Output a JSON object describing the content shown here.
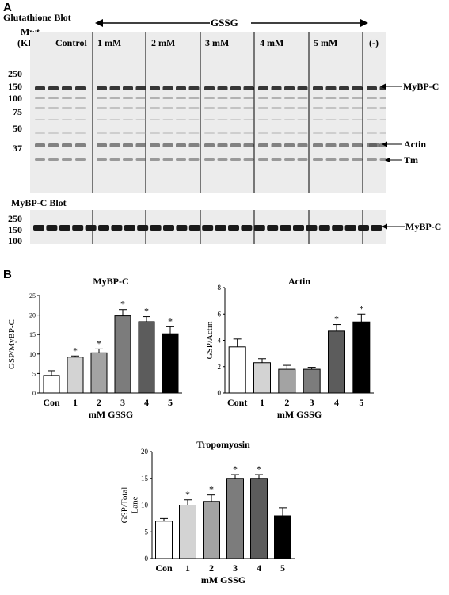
{
  "panel_a": {
    "letter": "A",
    "blot1_title": "Glutathione  Blot",
    "gssg_label": "GSSG",
    "mwt_label": "Mwt",
    "kda_label": "(KDa)",
    "lane_labels": [
      "Control",
      "1 mM",
      "2 mM",
      "3 mM",
      "4 mM",
      "5 mM",
      "(-)"
    ],
    "mw_markers_top": [
      "250",
      "150",
      "100",
      "75",
      "50",
      "37"
    ],
    "band_labels": [
      "MyBP-C",
      "Actin",
      "Tm"
    ],
    "blot2_title": "MyBP-C Blot",
    "mw_markers_bottom": [
      "250",
      "150",
      "100"
    ],
    "blot2_band_label": "MyBP-C"
  },
  "panel_b": {
    "letter": "B"
  },
  "chart_data": [
    {
      "type": "bar",
      "title": "MyBP-C",
      "ylabel": "GSP/MyBP-C",
      "xlabel": "mM GSSG",
      "categories": [
        "Con",
        "1",
        "2",
        "3",
        "4",
        "5"
      ],
      "values": [
        4.5,
        9.2,
        10.3,
        19.8,
        18.3,
        15.2
      ],
      "errors": [
        1.2,
        0.3,
        1.0,
        1.6,
        1.3,
        1.8
      ],
      "significant": [
        "",
        "*",
        "*",
        "*",
        "*",
        "*"
      ],
      "ylim": [
        0,
        25
      ],
      "yticks": [
        "0",
        "5",
        "10",
        "15",
        "20",
        "25"
      ],
      "colors": [
        "#ffffff",
        "#d3d3d3",
        "#a3a3a3",
        "#7c7c7c",
        "#5c5c5c",
        "#000000"
      ]
    },
    {
      "type": "bar",
      "title": "Actin",
      "ylabel": "GSP/Actin",
      "xlabel": "mM GSSG",
      "categories": [
        "Cont",
        "1",
        "2",
        "3",
        "4",
        "5"
      ],
      "values": [
        3.5,
        2.3,
        1.8,
        1.8,
        4.7,
        5.4
      ],
      "errors": [
        0.6,
        0.3,
        0.3,
        0.15,
        0.5,
        0.6
      ],
      "significant": [
        "",
        "",
        "",
        "",
        "*",
        "*"
      ],
      "ylim": [
        0,
        8
      ],
      "yticks": [
        "0",
        "2",
        "4",
        "6",
        "8"
      ],
      "colors": [
        "#ffffff",
        "#d3d3d3",
        "#a3a3a3",
        "#7c7c7c",
        "#5c5c5c",
        "#000000"
      ]
    },
    {
      "type": "bar",
      "title": "Tropomyosin",
      "ylabel": "GSP/Total Lane",
      "xlabel": "mM GSSG",
      "categories": [
        "Con",
        "1",
        "2",
        "3",
        "4",
        "5"
      ],
      "values": [
        7.0,
        10.0,
        10.7,
        15.0,
        15.0,
        8.0
      ],
      "errors": [
        0.5,
        1.0,
        1.2,
        0.7,
        0.7,
        1.5
      ],
      "significant": [
        "",
        "*",
        "*",
        "*",
        "*",
        ""
      ],
      "ylim": [
        0,
        20
      ],
      "yticks": [
        "0",
        "5",
        "10",
        "15",
        "20"
      ],
      "colors": [
        "#ffffff",
        "#d3d3d3",
        "#a3a3a3",
        "#7c7c7c",
        "#5c5c5c",
        "#000000"
      ]
    }
  ]
}
